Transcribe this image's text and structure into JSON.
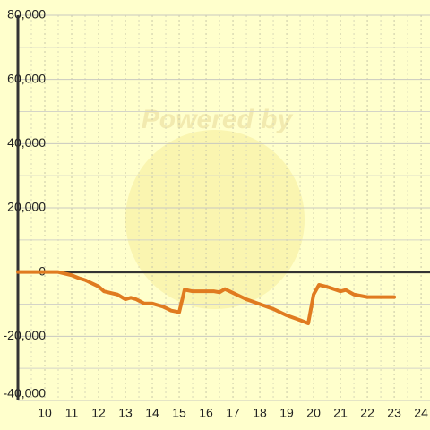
{
  "chart_data": {
    "type": "line",
    "watermark": "Powered by",
    "x": [
      9,
      10.5,
      11,
      11.3,
      11.5,
      12,
      12.2,
      12.7,
      13,
      13.2,
      13.4,
      13.7,
      14,
      14.4,
      14.7,
      15,
      15.2,
      15.5,
      16,
      16.3,
      16.5,
      16.7,
      17,
      17.5,
      18,
      18.5,
      19,
      19.5,
      19.8,
      20,
      20.2,
      20.5,
      21,
      21.2,
      21.5,
      22,
      23
    ],
    "series": [
      {
        "color": "#e07b20",
        "values": [
          0,
          0,
          -1000,
          -2000,
          -2500,
          -4500,
          -6000,
          -7000,
          -8500,
          -8000,
          -8500,
          -9800,
          -9800,
          -10800,
          -12000,
          -12500,
          -5500,
          -6000,
          -6000,
          -6000,
          -6300,
          -5300,
          -6500,
          -8500,
          -10000,
          -11500,
          -13500,
          -15000,
          -16000,
          -7000,
          -4000,
          -4600,
          -6000,
          -5600,
          -7000,
          -7800,
          -7800
        ]
      }
    ],
    "xlim": [
      9,
      24.33
    ],
    "xticks": [
      10,
      11,
      12,
      13,
      14,
      15,
      16,
      17,
      18,
      19,
      20,
      21,
      22,
      23,
      24
    ],
    "ylim": [
      -40000,
      80000
    ],
    "yticks": [
      {
        "value": -40000,
        "label": "-40,000"
      },
      {
        "value": -20000,
        "label": "-20,000"
      },
      0,
      {
        "value": 20000,
        "label": "20,000"
      },
      {
        "value": 40000,
        "label": "40,000"
      },
      {
        "value": 60000,
        "label": "60,000"
      },
      {
        "value": 80000,
        "label": "80,000"
      }
    ],
    "grid": true
  }
}
